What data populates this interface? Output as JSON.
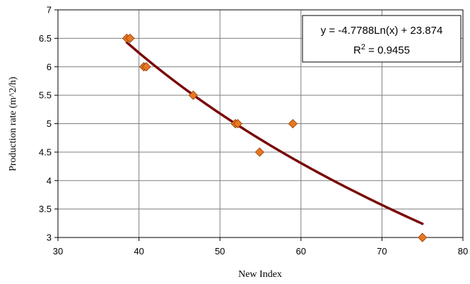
{
  "chart_data": {
    "type": "scatter",
    "xlabel": "New Index",
    "ylabel": "Production rate (m^2/h)",
    "xlim": [
      30,
      80
    ],
    "ylim": [
      3,
      7
    ],
    "x_ticks": [
      "30",
      "40",
      "50",
      "60",
      "70",
      "80"
    ],
    "y_ticks": [
      "3",
      "3.5",
      "4",
      "4.5",
      "5",
      "5.5",
      "6",
      "6.5",
      "7"
    ],
    "grid": true,
    "points": [
      {
        "x": 38.5,
        "y": 6.5
      },
      {
        "x": 38.9,
        "y": 6.5
      },
      {
        "x": 40.6,
        "y": 6.0
      },
      {
        "x": 40.9,
        "y": 6.0
      },
      {
        "x": 46.7,
        "y": 5.5
      },
      {
        "x": 51.9,
        "y": 5.0
      },
      {
        "x": 52.2,
        "y": 5.0
      },
      {
        "x": 54.9,
        "y": 4.5
      },
      {
        "x": 59.0,
        "y": 5.0
      },
      {
        "x": 75.0,
        "y": 3.0
      }
    ],
    "point_color": "#e87722",
    "point_edge_color": "#8b3a00",
    "trendline": {
      "type": "logarithmic",
      "a": -4.7788,
      "b": 23.874,
      "x_range": [
        38.5,
        75.0
      ],
      "color": "#7a0a0a"
    },
    "annotation": {
      "equation": "y = -4.7788Ln(x) + 23.874",
      "r2_prefix": "R",
      "r2_exponent": "2",
      "r2_suffix": " = 0.9455"
    }
  }
}
